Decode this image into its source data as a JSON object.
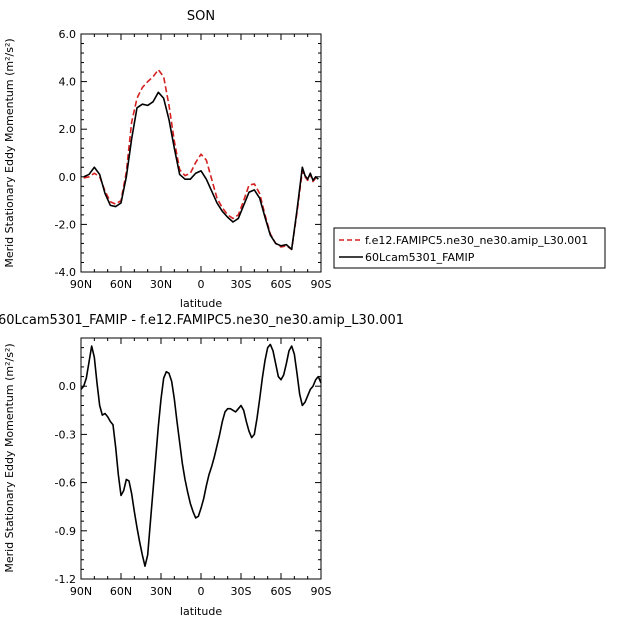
{
  "chart_data": [
    {
      "type": "line",
      "title": "SON",
      "xlabel": "latitude",
      "ylabel": "Merid Stationary Eddy Momentum (m²/s²)",
      "xlim": [
        90,
        -90
      ],
      "ylim": [
        -4.0,
        6.0
      ],
      "x_ticks": [
        90,
        60,
        30,
        0,
        -30,
        -60,
        -90
      ],
      "x_tick_labels": [
        "90N",
        "60N",
        "30N",
        "0",
        "30S",
        "60S",
        "90S"
      ],
      "y_ticks": [
        -4.0,
        -2.0,
        0.0,
        2.0,
        4.0,
        6.0
      ],
      "y_tick_labels": [
        "-4.0",
        "-2.0",
        "0.0",
        "2.0",
        "4.0",
        "6.0"
      ],
      "legend_position": "outside-right",
      "series": [
        {
          "name": "f.e12.FAMIPC5.ne30_ne30.amip_L30.001",
          "color": "#d62020",
          "dash": "dashed",
          "x": [
            88,
            84,
            80,
            76,
            72,
            68,
            64,
            60,
            56,
            52,
            48,
            44,
            40,
            36,
            32,
            28,
            24,
            20,
            16,
            12,
            8,
            4,
            0,
            -4,
            -8,
            -12,
            -16,
            -20,
            -24,
            -28,
            -32,
            -36,
            -40,
            -44,
            -48,
            -52,
            -56,
            -60,
            -64,
            -68,
            -72,
            -76,
            -78,
            -80,
            -82,
            -84,
            -86,
            -88
          ],
          "y": [
            -0.05,
            0.0,
            0.15,
            0.0,
            -0.6,
            -1.05,
            -1.15,
            -1.0,
            0.2,
            2.3,
            3.3,
            3.75,
            4.0,
            4.2,
            4.5,
            4.2,
            3.0,
            1.5,
            0.3,
            0.05,
            0.15,
            0.6,
            0.95,
            0.7,
            -0.1,
            -0.9,
            -1.3,
            -1.6,
            -1.75,
            -1.6,
            -1.0,
            -0.35,
            -0.3,
            -0.7,
            -1.6,
            -2.4,
            -2.8,
            -2.95,
            -2.9,
            -3.05,
            -1.5,
            0.25,
            0.0,
            -0.15,
            0.1,
            -0.2,
            -0.05,
            -0.15
          ]
        },
        {
          "name": "60Lcam5301_FAMIP",
          "color": "#000000",
          "dash": "solid",
          "x": [
            88,
            84,
            80,
            76,
            72,
            68,
            64,
            60,
            56,
            52,
            48,
            44,
            40,
            36,
            32,
            28,
            24,
            20,
            16,
            12,
            8,
            4,
            0,
            -4,
            -8,
            -12,
            -16,
            -20,
            -24,
            -28,
            -32,
            -36,
            -40,
            -44,
            -48,
            -52,
            -56,
            -60,
            -64,
            -68,
            -72,
            -76,
            -78,
            -80,
            -82,
            -84,
            -86,
            -88
          ],
          "y": [
            0.0,
            0.1,
            0.4,
            0.1,
            -0.7,
            -1.2,
            -1.25,
            -1.1,
            0.0,
            1.6,
            2.9,
            3.05,
            3.0,
            3.15,
            3.55,
            3.3,
            2.4,
            1.2,
            0.1,
            -0.1,
            -0.1,
            0.15,
            0.25,
            -0.1,
            -0.6,
            -1.1,
            -1.45,
            -1.7,
            -1.9,
            -1.75,
            -1.2,
            -0.65,
            -0.55,
            -0.9,
            -1.7,
            -2.45,
            -2.8,
            -2.9,
            -2.85,
            -3.05,
            -1.4,
            0.4,
            0.05,
            -0.1,
            0.15,
            -0.15,
            0.0,
            -0.1
          ]
        }
      ]
    },
    {
      "type": "line",
      "title": "60Lcam5301_FAMIP - f.e12.FAMIPC5.ne30_ne30.amip_L30.001",
      "xlabel": "latitude",
      "ylabel": "Merid Stationary Eddy Momentum (m²/s²)",
      "xlim": [
        90,
        -90
      ],
      "ylim": [
        -1.2,
        0.3
      ],
      "x_ticks": [
        90,
        60,
        30,
        0,
        -30,
        -60,
        -90
      ],
      "x_tick_labels": [
        "90N",
        "60N",
        "30N",
        "0",
        "30S",
        "60S",
        "90S"
      ],
      "y_ticks": [
        -1.2,
        -0.9,
        -0.6,
        -0.3,
        0.0
      ],
      "y_tick_labels": [
        "-1.2",
        "-0.9",
        "-0.6",
        "-0.3",
        "0.0"
      ],
      "series": [
        {
          "color": "#000000",
          "dash": "solid",
          "x": [
            90,
            88,
            86,
            84,
            82,
            80,
            78,
            76,
            74,
            72,
            70,
            68,
            66,
            64,
            62,
            60,
            58,
            56,
            54,
            52,
            50,
            48,
            46,
            44,
            42,
            40,
            38,
            36,
            34,
            32,
            30,
            28,
            26,
            24,
            22,
            20,
            18,
            16,
            14,
            12,
            10,
            8,
            6,
            4,
            2,
            0,
            -2,
            -4,
            -6,
            -8,
            -10,
            -12,
            -14,
            -16,
            -18,
            -20,
            -22,
            -24,
            -26,
            -28,
            -30,
            -32,
            -34,
            -36,
            -38,
            -40,
            -42,
            -44,
            -46,
            -48,
            -50,
            -52,
            -54,
            -56,
            -58,
            -60,
            -62,
            -64,
            -66,
            -68,
            -70,
            -72,
            -74,
            -76,
            -78,
            -80,
            -82,
            -84,
            -86,
            -88,
            -90
          ],
          "y": [
            -0.02,
            0.0,
            0.05,
            0.15,
            0.25,
            0.18,
            0.02,
            -0.12,
            -0.18,
            -0.17,
            -0.19,
            -0.22,
            -0.24,
            -0.38,
            -0.55,
            -0.68,
            -0.65,
            -0.58,
            -0.59,
            -0.67,
            -0.78,
            -0.88,
            -0.97,
            -1.05,
            -1.12,
            -1.05,
            -0.85,
            -0.65,
            -0.45,
            -0.25,
            -0.08,
            0.05,
            0.09,
            0.08,
            0.03,
            -0.08,
            -0.22,
            -0.35,
            -0.48,
            -0.58,
            -0.66,
            -0.73,
            -0.78,
            -0.82,
            -0.81,
            -0.76,
            -0.7,
            -0.62,
            -0.55,
            -0.5,
            -0.44,
            -0.37,
            -0.3,
            -0.22,
            -0.16,
            -0.14,
            -0.14,
            -0.15,
            -0.16,
            -0.14,
            -0.12,
            -0.15,
            -0.22,
            -0.28,
            -0.32,
            -0.3,
            -0.2,
            -0.08,
            0.05,
            0.16,
            0.24,
            0.26,
            0.22,
            0.14,
            0.06,
            0.04,
            0.07,
            0.14,
            0.22,
            0.25,
            0.2,
            0.08,
            -0.05,
            -0.12,
            -0.1,
            -0.06,
            -0.02,
            0.0,
            0.04,
            0.06,
            0.02
          ]
        }
      ]
    }
  ]
}
